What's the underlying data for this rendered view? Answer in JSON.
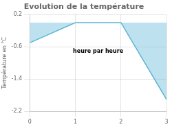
{
  "chart_data": {
    "type": "area",
    "title": "Evolution de la température",
    "ylabel": "Température en °C",
    "annotations": [
      "heure par heure"
    ],
    "x": [
      0,
      1,
      2,
      3
    ],
    "values": [
      -0.5,
      0.0,
      0.0,
      -1.9
    ],
    "color": "#5ab5d4",
    "xlim": [
      0,
      3
    ],
    "xticks": [
      0,
      1,
      2,
      3
    ],
    "ylim": [
      -2.2,
      0.2
    ],
    "yticks": [
      0.2,
      -0.6,
      -1.4,
      -2.2
    ],
    "grid": true
  }
}
